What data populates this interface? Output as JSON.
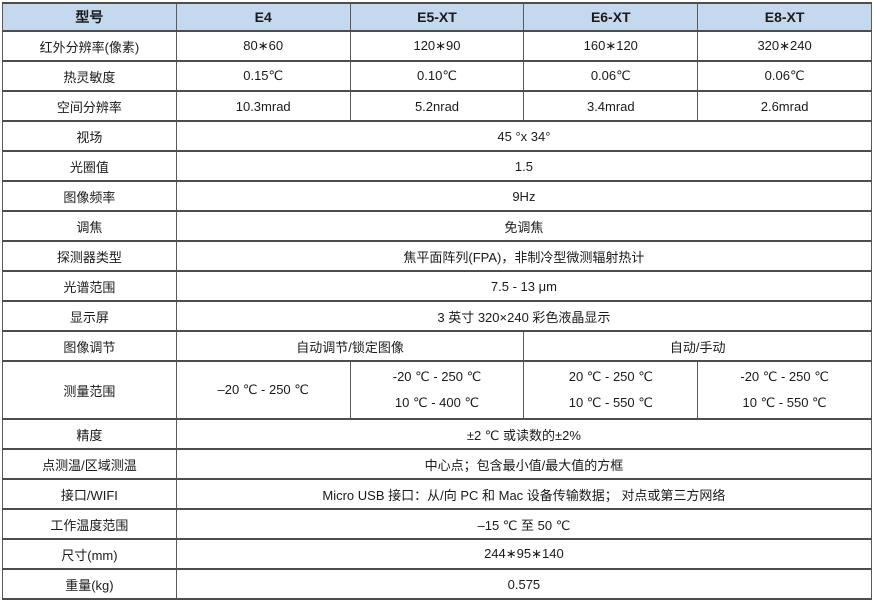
{
  "header": {
    "col0": "型号",
    "col1": "E4",
    "col2": "E5-XT",
    "col3": "E6-XT",
    "col4": "E8-XT"
  },
  "rows": {
    "ir_resolution": {
      "label": "红外分辨率(像素)",
      "values": [
        "80∗60",
        "120∗90",
        "160∗120",
        "320∗240"
      ]
    },
    "thermal_sensitivity": {
      "label": "热灵敏度",
      "values": [
        "0.15℃",
        "0.10℃",
        "0.06℃",
        "0.06℃"
      ]
    },
    "spatial_resolution": {
      "label": "空间分辨率",
      "values": [
        "10.3mrad",
        "5.2nrad",
        "3.4mrad",
        "2.6mrad"
      ]
    },
    "fov": {
      "label": "视场",
      "value": "45 °x 34°"
    },
    "aperture": {
      "label": "光圈值",
      "value": "1.5"
    },
    "frame_rate": {
      "label": "图像频率",
      "value": "9Hz"
    },
    "focus": {
      "label": "调焦",
      "value": "免调焦"
    },
    "detector_type": {
      "label": "探测器类型",
      "value": "焦平面阵列(FPA)，非制冷型微测辐射热计"
    },
    "spectral_range": {
      "label": "光谱范围",
      "value": "7.5 - 13 μm"
    },
    "display": {
      "label": "显示屏",
      "value": "3 英寸 320×240 彩色液晶显示"
    },
    "image_adjust": {
      "label": "图像调节",
      "left": "自动调节/锁定图像",
      "right": "自动/手动"
    },
    "measure_range": {
      "label": "测量范围",
      "e4": "–20 ℃ - 250 ℃",
      "e5": [
        "-20 ℃ - 250 ℃",
        "10 ℃ - 400 ℃"
      ],
      "e6": [
        "20 ℃ - 250 ℃",
        "10 ℃ - 550 ℃"
      ],
      "e8": [
        "-20 ℃ - 250 ℃",
        "10 ℃ - 550 ℃"
      ]
    },
    "accuracy": {
      "label": "精度",
      "value": "±2 ℃ 或读数的±2%"
    },
    "spot_area": {
      "label": "点测温/区域测温",
      "value": "中心点；包含最小值/最大值的方框"
    },
    "interface_wifi": {
      "label": "接口/WIFI",
      "value": "Micro USB 接口：从/向 PC 和 Mac 设备传输数据； 对点或第三方网络"
    },
    "operating_temp": {
      "label": "工作温度范围",
      "value": "–15 ℃ 至 50 ℃"
    },
    "dimensions": {
      "label": "尺寸(mm)",
      "value": "244∗95∗140"
    },
    "weight": {
      "label": "重量(kg)",
      "value": "0.575"
    }
  },
  "colors": {
    "header_bg": "#c5d9ee",
    "border_horizontal": "#4d4d4d",
    "border_vertical": "#5a5a5a",
    "text": "#1a1a1a"
  }
}
